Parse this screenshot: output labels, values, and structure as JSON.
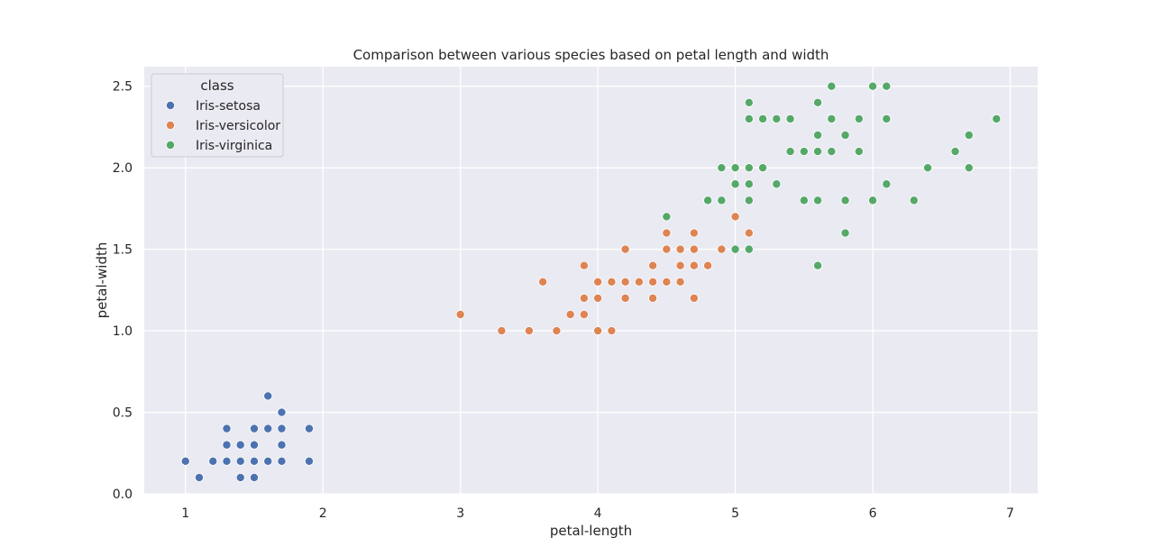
{
  "chart_data": {
    "type": "scatter",
    "title": "Comparison between various species based on petal length and width",
    "xlabel": "petal-length",
    "ylabel": "petal-width",
    "xlim": [
      0.7,
      7.2
    ],
    "ylim": [
      0.0,
      2.62
    ],
    "xticks": [
      1,
      2,
      3,
      4,
      5,
      6,
      7
    ],
    "xtick_labels": [
      "1",
      "2",
      "3",
      "4",
      "5",
      "6",
      "7"
    ],
    "yticks": [
      0.0,
      0.5,
      1.0,
      1.5,
      2.0,
      2.5
    ],
    "ytick_labels": [
      "0.0",
      "0.5",
      "1.0",
      "1.5",
      "2.0",
      "2.5"
    ],
    "grid": true,
    "legend": {
      "title": "class",
      "placement": "top-left"
    },
    "series": [
      {
        "name": "Iris-setosa",
        "color": "#4c72b0",
        "points": [
          [
            1.0,
            0.2
          ],
          [
            1.1,
            0.1
          ],
          [
            1.2,
            0.2
          ],
          [
            1.3,
            0.2
          ],
          [
            1.3,
            0.3
          ],
          [
            1.3,
            0.4
          ],
          [
            1.4,
            0.1
          ],
          [
            1.4,
            0.2
          ],
          [
            1.4,
            0.3
          ],
          [
            1.5,
            0.1
          ],
          [
            1.5,
            0.2
          ],
          [
            1.5,
            0.3
          ],
          [
            1.5,
            0.4
          ],
          [
            1.6,
            0.2
          ],
          [
            1.6,
            0.4
          ],
          [
            1.6,
            0.6
          ],
          [
            1.7,
            0.2
          ],
          [
            1.7,
            0.3
          ],
          [
            1.7,
            0.4
          ],
          [
            1.7,
            0.5
          ],
          [
            1.9,
            0.2
          ],
          [
            1.9,
            0.4
          ]
        ]
      },
      {
        "name": "Iris-versicolor",
        "color": "#dd8452",
        "points": [
          [
            3.0,
            1.1
          ],
          [
            3.3,
            1.0
          ],
          [
            3.5,
            1.0
          ],
          [
            3.6,
            1.3
          ],
          [
            3.7,
            1.0
          ],
          [
            3.8,
            1.1
          ],
          [
            3.9,
            1.1
          ],
          [
            3.9,
            1.2
          ],
          [
            3.9,
            1.4
          ],
          [
            4.0,
            1.0
          ],
          [
            4.0,
            1.2
          ],
          [
            4.0,
            1.3
          ],
          [
            4.1,
            1.0
          ],
          [
            4.1,
            1.3
          ],
          [
            4.2,
            1.2
          ],
          [
            4.2,
            1.3
          ],
          [
            4.2,
            1.5
          ],
          [
            4.3,
            1.3
          ],
          [
            4.4,
            1.2
          ],
          [
            4.4,
            1.3
          ],
          [
            4.4,
            1.4
          ],
          [
            4.5,
            1.3
          ],
          [
            4.5,
            1.5
          ],
          [
            4.5,
            1.6
          ],
          [
            4.6,
            1.3
          ],
          [
            4.6,
            1.4
          ],
          [
            4.6,
            1.5
          ],
          [
            4.7,
            1.2
          ],
          [
            4.7,
            1.4
          ],
          [
            4.7,
            1.5
          ],
          [
            4.7,
            1.6
          ],
          [
            4.8,
            1.4
          ],
          [
            4.9,
            1.5
          ],
          [
            5.0,
            1.7
          ],
          [
            5.1,
            1.6
          ]
        ]
      },
      {
        "name": "Iris-virginica",
        "color": "#55a868",
        "points": [
          [
            4.5,
            1.7
          ],
          [
            4.8,
            1.8
          ],
          [
            4.9,
            1.8
          ],
          [
            4.9,
            2.0
          ],
          [
            5.0,
            1.5
          ],
          [
            5.0,
            1.9
          ],
          [
            5.0,
            2.0
          ],
          [
            5.1,
            1.5
          ],
          [
            5.1,
            1.8
          ],
          [
            5.1,
            1.9
          ],
          [
            5.1,
            2.0
          ],
          [
            5.1,
            2.3
          ],
          [
            5.1,
            2.4
          ],
          [
            5.2,
            2.0
          ],
          [
            5.2,
            2.3
          ],
          [
            5.3,
            1.9
          ],
          [
            5.3,
            2.3
          ],
          [
            5.4,
            2.1
          ],
          [
            5.4,
            2.3
          ],
          [
            5.5,
            1.8
          ],
          [
            5.5,
            2.1
          ],
          [
            5.6,
            1.4
          ],
          [
            5.6,
            1.8
          ],
          [
            5.6,
            2.1
          ],
          [
            5.6,
            2.2
          ],
          [
            5.6,
            2.4
          ],
          [
            5.7,
            2.1
          ],
          [
            5.7,
            2.3
          ],
          [
            5.7,
            2.5
          ],
          [
            5.8,
            1.6
          ],
          [
            5.8,
            1.8
          ],
          [
            5.8,
            2.2
          ],
          [
            5.9,
            2.1
          ],
          [
            5.9,
            2.3
          ],
          [
            6.0,
            1.8
          ],
          [
            6.0,
            2.5
          ],
          [
            6.1,
            1.9
          ],
          [
            6.1,
            2.3
          ],
          [
            6.1,
            2.5
          ],
          [
            6.3,
            1.8
          ],
          [
            6.4,
            2.0
          ],
          [
            6.6,
            2.1
          ],
          [
            6.7,
            2.0
          ],
          [
            6.7,
            2.2
          ],
          [
            6.9,
            2.3
          ]
        ]
      }
    ]
  }
}
